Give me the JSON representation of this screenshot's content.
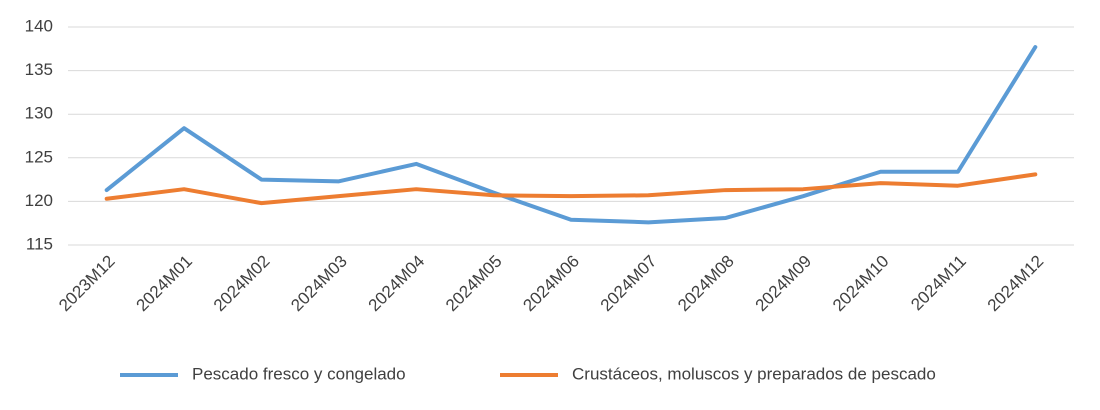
{
  "chart_data": {
    "type": "line",
    "categories": [
      "2023M12",
      "2024M01",
      "2024M02",
      "2024M03",
      "2024M04",
      "2024M05",
      "2024M06",
      "2024M07",
      "2024M08",
      "2024M09",
      "2024M10",
      "2024M11",
      "2024M12"
    ],
    "series": [
      {
        "name": "Pescado fresco y congelado",
        "color": "#5b9bd5",
        "values": [
          121.3,
          128.4,
          122.5,
          122.3,
          124.3,
          121.0,
          117.9,
          117.6,
          118.1,
          120.6,
          123.4,
          123.4,
          137.7
        ]
      },
      {
        "name": "Crustáceos, moluscos y preparados de pescado",
        "color": "#ed7d31",
        "values": [
          120.3,
          121.4,
          119.8,
          120.6,
          121.4,
          120.7,
          120.6,
          120.7,
          121.3,
          121.4,
          122.1,
          121.8,
          123.1
        ]
      }
    ],
    "ylim": [
      115,
      140
    ],
    "yticks": [
      115,
      120,
      125,
      130,
      135,
      140
    ],
    "grid": true,
    "legend": "bottom"
  }
}
